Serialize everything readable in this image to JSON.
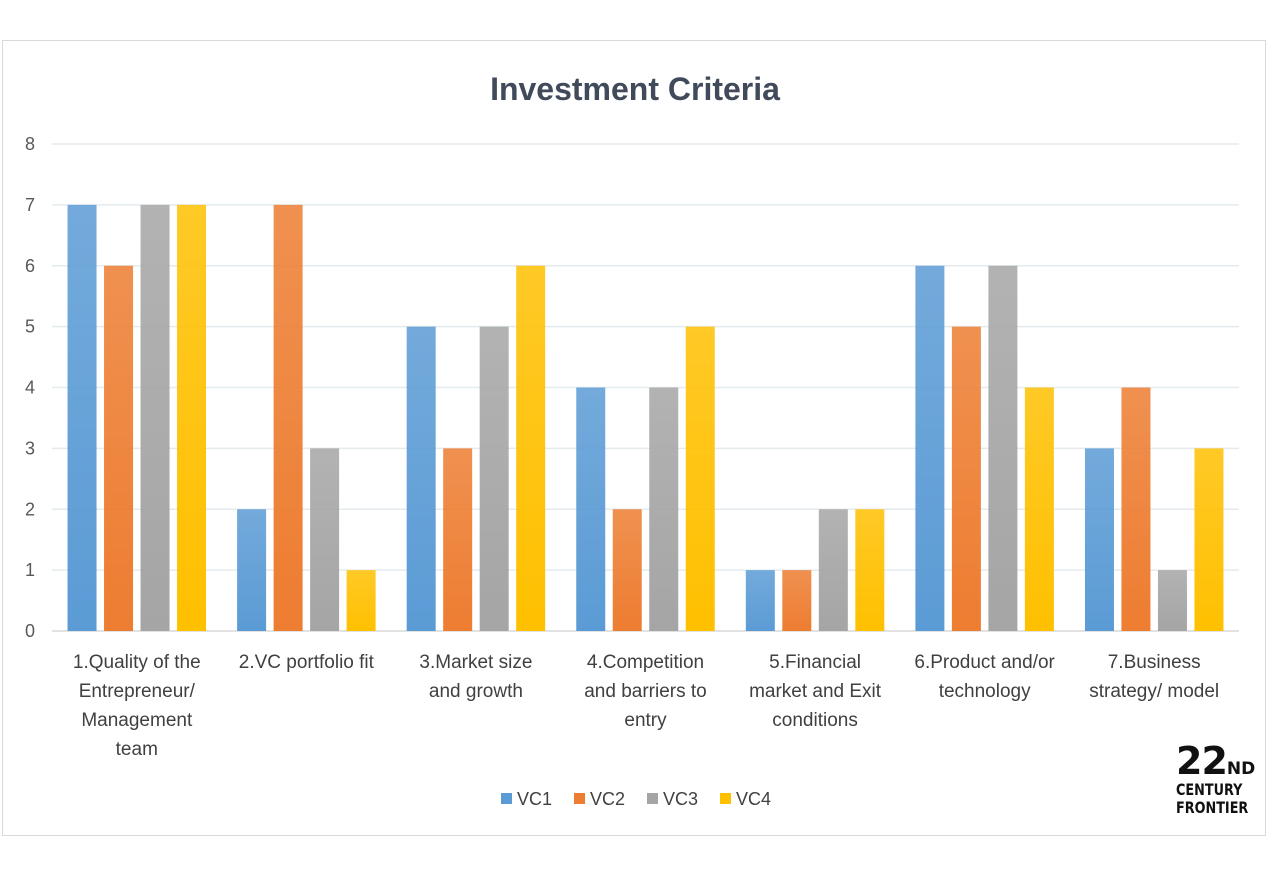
{
  "chart_data": {
    "type": "bar",
    "title": "Investment Criteria",
    "xlabel": "",
    "ylabel": "",
    "ylim": [
      0,
      8
    ],
    "yticks": [
      0,
      1,
      2,
      3,
      4,
      5,
      6,
      7,
      8
    ],
    "grid": true,
    "legend_position": "bottom",
    "categories": [
      [
        "1.Quality of the",
        "Entrepreneur/",
        "Management",
        "team"
      ],
      [
        "2.VC portfolio fit"
      ],
      [
        "3.Market size",
        "and growth"
      ],
      [
        "4.Competition",
        "and barriers to",
        "entry"
      ],
      [
        "5.Financial",
        "market and Exit",
        "conditions"
      ],
      [
        "6.Product and/or",
        "technology"
      ],
      [
        "7.Business",
        "strategy/ model"
      ]
    ],
    "series": [
      {
        "name": "VC1",
        "color": "#5b9bd5",
        "values": [
          7,
          2,
          5,
          4,
          1,
          6,
          3
        ]
      },
      {
        "name": "VC2",
        "color": "#ed7d31",
        "values": [
          6,
          7,
          3,
          2,
          1,
          5,
          4
        ]
      },
      {
        "name": "VC3",
        "color": "#a5a5a5",
        "values": [
          7,
          3,
          5,
          4,
          2,
          6,
          1
        ]
      },
      {
        "name": "VC4",
        "color": "#ffc000",
        "values": [
          7,
          1,
          6,
          5,
          2,
          4,
          3
        ]
      }
    ]
  },
  "brand": {
    "number": "22",
    "suffix": "ND",
    "line1": "CENTURY",
    "line2": "FRONTIER"
  }
}
